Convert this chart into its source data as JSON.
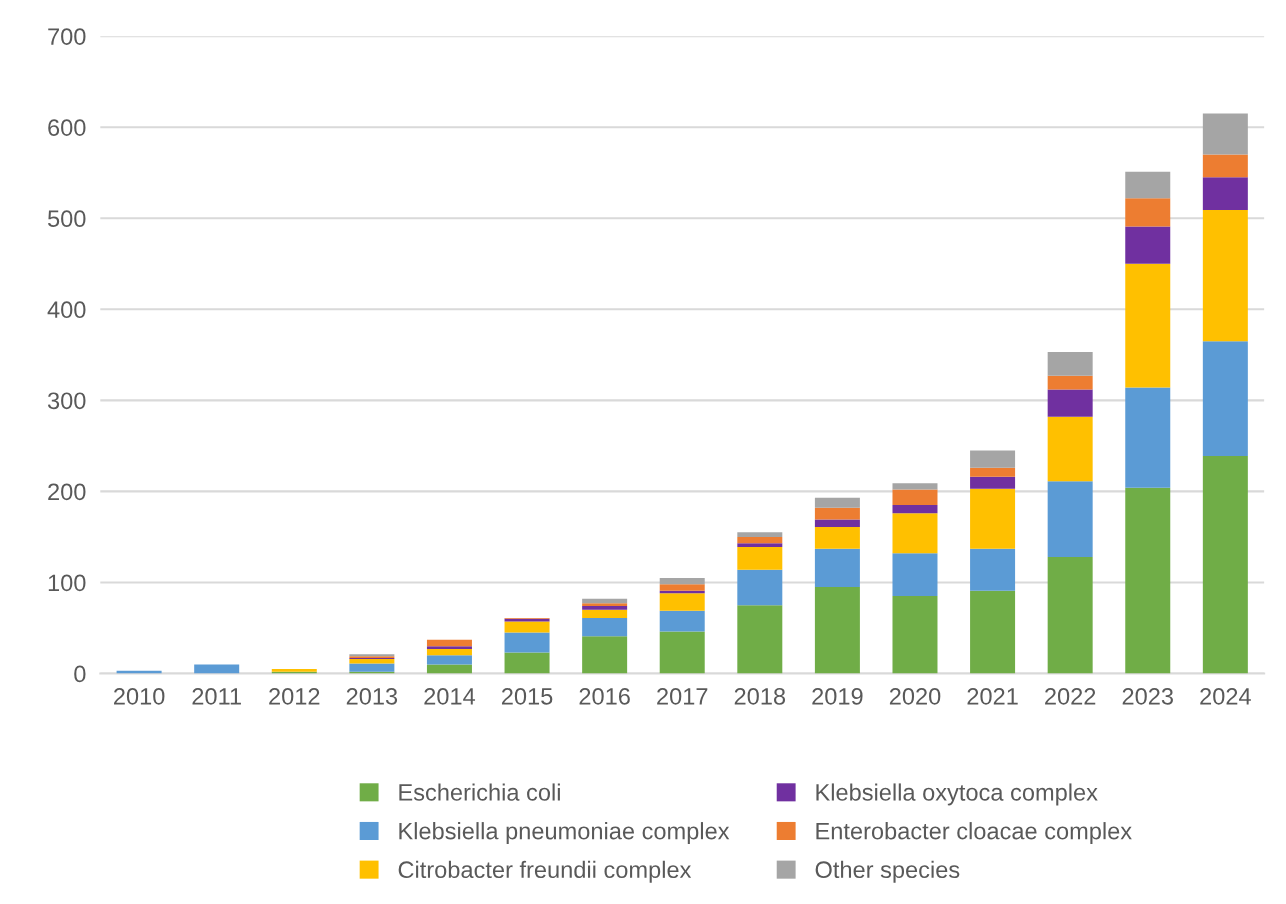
{
  "chart_data": {
    "type": "bar",
    "stacked": true,
    "categories": [
      "2010",
      "2011",
      "2012",
      "2013",
      "2014",
      "2015",
      "2016",
      "2017",
      "2018",
      "2019",
      "2020",
      "2021",
      "2022",
      "2023",
      "2024"
    ],
    "series": [
      {
        "name": "Escherichia coli",
        "color": "#70ad47",
        "values": [
          0,
          0,
          2,
          2,
          10,
          23,
          41,
          46,
          75,
          95,
          85,
          91,
          128,
          204,
          239
        ]
      },
      {
        "name": "Klebsiella pneumoniae complex",
        "color": "#5b9bd5",
        "values": [
          3,
          10,
          0,
          9,
          10,
          22,
          20,
          23,
          39,
          42,
          47,
          46,
          83,
          110,
          126
        ]
      },
      {
        "name": "Citrobacter freundii complex",
        "color": "#ffc000",
        "values": [
          0,
          0,
          3,
          5,
          7,
          12,
          9,
          19,
          25,
          24,
          44,
          66,
          71,
          136,
          144
        ]
      },
      {
        "name": "Klebsiella oxytoca complex",
        "color": "#7030a0",
        "values": [
          0,
          0,
          0,
          1,
          3,
          3,
          4,
          3,
          4,
          8,
          9,
          13,
          30,
          41,
          36
        ]
      },
      {
        "name": "Enterobacter cloacae complex",
        "color": "#ed7d31",
        "values": [
          0,
          0,
          0,
          2,
          7,
          1,
          3,
          7,
          7,
          13,
          17,
          10,
          15,
          31,
          25
        ]
      },
      {
        "name": "Other species",
        "color": "#a5a5a5",
        "values": [
          0,
          0,
          0,
          2,
          0,
          0,
          5,
          7,
          5,
          11,
          7,
          19,
          26,
          29,
          45
        ]
      }
    ],
    "ylim": [
      0,
      700
    ],
    "yticks": [
      0,
      100,
      200,
      300,
      400,
      500,
      600,
      700
    ],
    "grid": "y",
    "legend": "bottom"
  }
}
